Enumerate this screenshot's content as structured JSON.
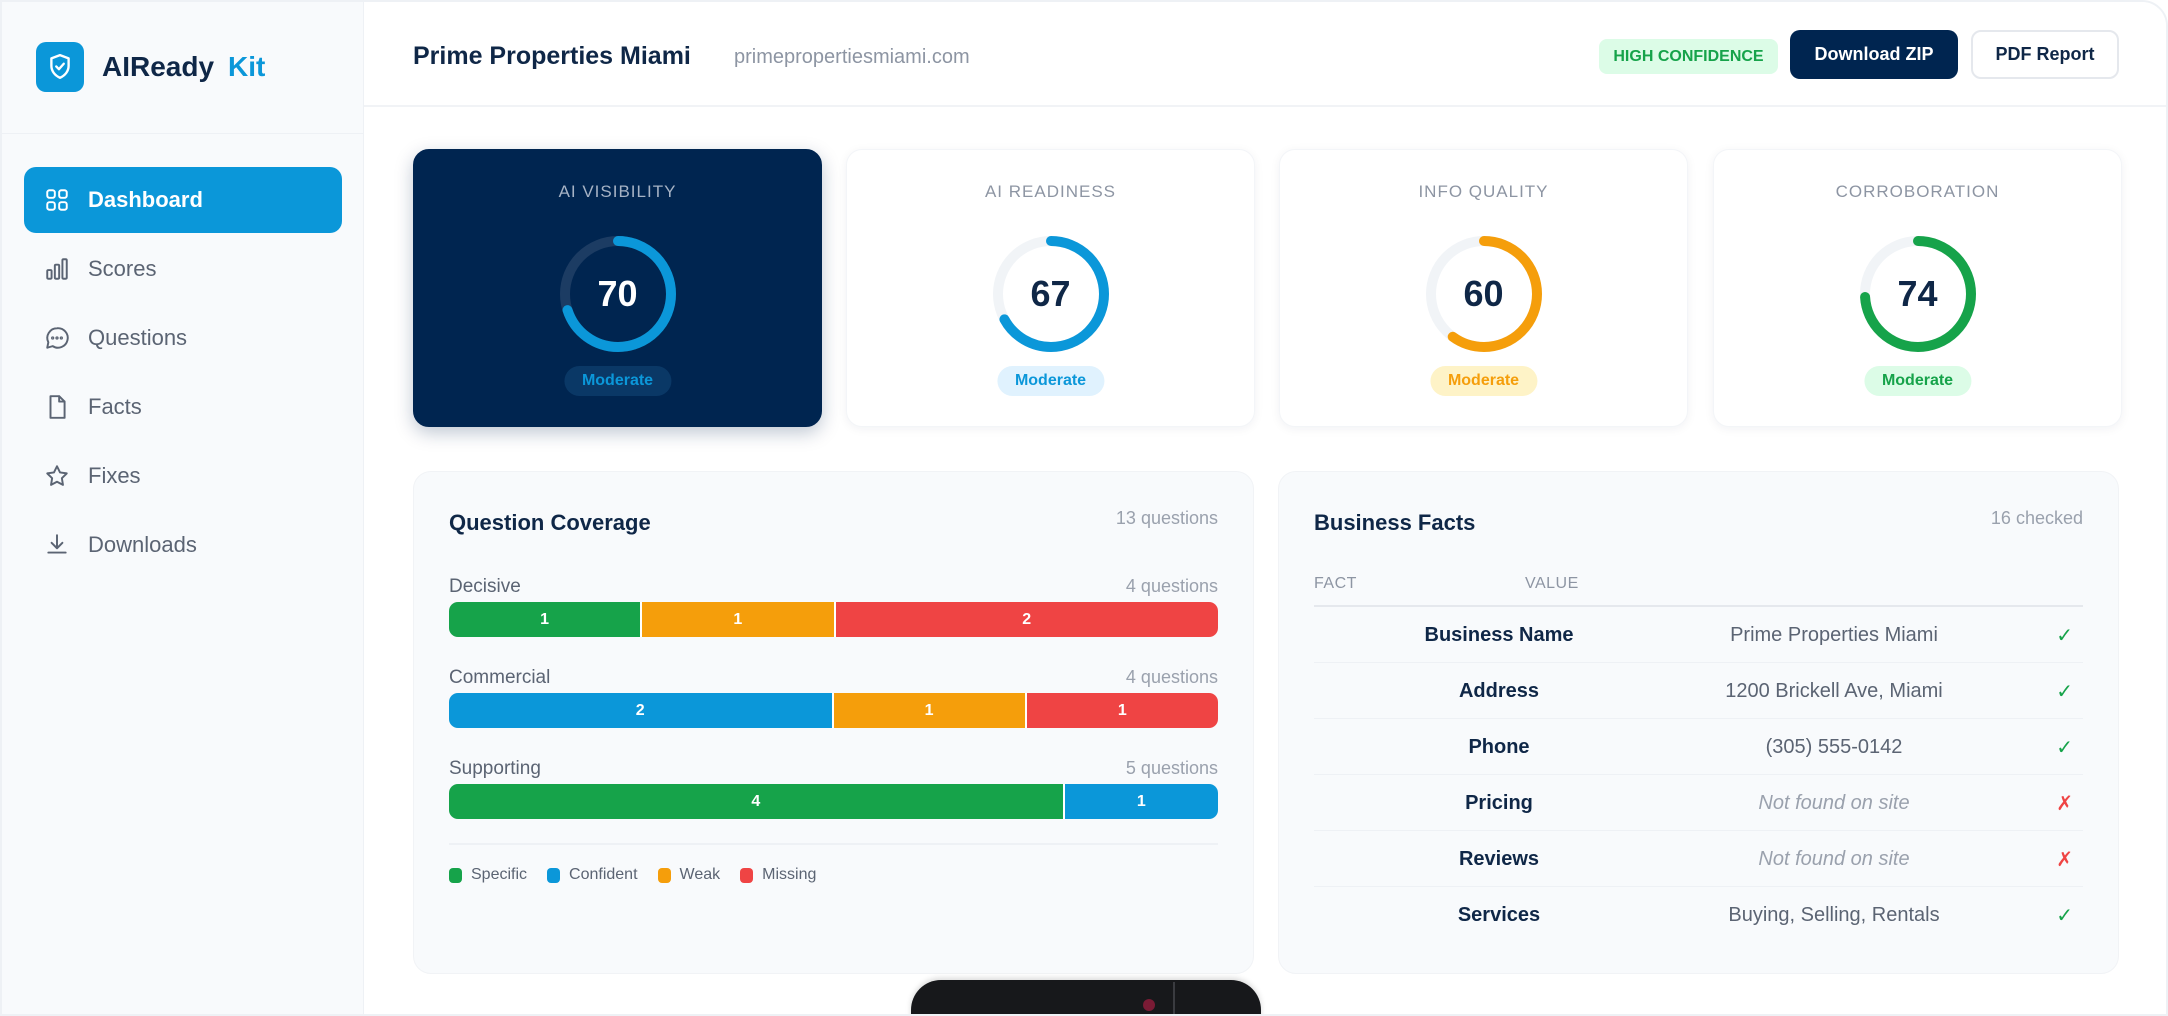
{
  "app": {
    "brand": "AIReady",
    "brand_suffix": "Kit"
  },
  "sidebar": {
    "items": [
      {
        "label": "Dashboard",
        "icon": "grid-icon",
        "active": true
      },
      {
        "label": "Scores",
        "icon": "bar-chart-icon"
      },
      {
        "label": "Questions",
        "icon": "chat-bubble-icon"
      },
      {
        "label": "Facts",
        "icon": "document-icon"
      },
      {
        "label": "Fixes",
        "icon": "star-icon"
      },
      {
        "label": "Downloads",
        "icon": "download-icon"
      }
    ]
  },
  "header": {
    "title": "Prime Properties Miami",
    "domain": "primepropertiesmiami.com",
    "confidence": "HIGH CONFIDENCE",
    "download_zip": "Download ZIP",
    "pdf_report": "PDF Report"
  },
  "scores": [
    {
      "label": "AI VISIBILITY",
      "value": 70,
      "status": "Moderate",
      "color": "#0b97d9",
      "dark": true
    },
    {
      "label": "AI READINESS",
      "value": 67,
      "status": "Moderate",
      "color": "#0b97d9"
    },
    {
      "label": "INFO QUALITY",
      "value": 60,
      "status": "Moderate",
      "color": "#f59e0b"
    },
    {
      "label": "CORROBORATION",
      "value": 74,
      "status": "Moderate",
      "color": "#16a34a"
    }
  ],
  "coverage": {
    "title": "Question Coverage",
    "total": "13 questions",
    "categories": [
      {
        "name": "Decisive",
        "count": "4 questions",
        "segments": [
          {
            "type": "specific",
            "value": 1
          },
          {
            "type": "weak",
            "value": 1
          },
          {
            "type": "missing",
            "value": 2
          }
        ]
      },
      {
        "name": "Commercial",
        "count": "4 questions",
        "segments": [
          {
            "type": "confident",
            "value": 2
          },
          {
            "type": "weak",
            "value": 1
          },
          {
            "type": "missing",
            "value": 1
          }
        ]
      },
      {
        "name": "Supporting",
        "count": "5 questions",
        "segments": [
          {
            "type": "specific",
            "value": 4
          },
          {
            "type": "confident",
            "value": 1
          }
        ]
      }
    ],
    "legend": [
      {
        "type": "specific",
        "label": "Specific",
        "color": "#16a34a"
      },
      {
        "type": "confident",
        "label": "Confident",
        "color": "#0b97d9"
      },
      {
        "type": "weak",
        "label": "Weak",
        "color": "#f59e0b"
      },
      {
        "type": "missing",
        "label": "Missing",
        "color": "#ef4444"
      }
    ]
  },
  "facts": {
    "title": "Business Facts",
    "checked": "16 checked",
    "columns": [
      "FACT",
      "VALUE"
    ],
    "rows": [
      {
        "fact": "Business Name",
        "value": "Prime Properties Miami",
        "found": true,
        "mark": "✓"
      },
      {
        "fact": "Address",
        "value": "1200 Brickell Ave, Miami",
        "found": true,
        "mark": "✓"
      },
      {
        "fact": "Phone",
        "value": "(305) 555-0142",
        "found": true,
        "mark": "✓"
      },
      {
        "fact": "Pricing",
        "value": "Not found on site",
        "found": false,
        "mark": "✗"
      },
      {
        "fact": "Reviews",
        "value": "Not found on site",
        "found": false,
        "mark": "✗"
      },
      {
        "fact": "Services",
        "value": "Buying, Selling, Rentals",
        "found": true,
        "mark": "✓"
      }
    ]
  }
}
